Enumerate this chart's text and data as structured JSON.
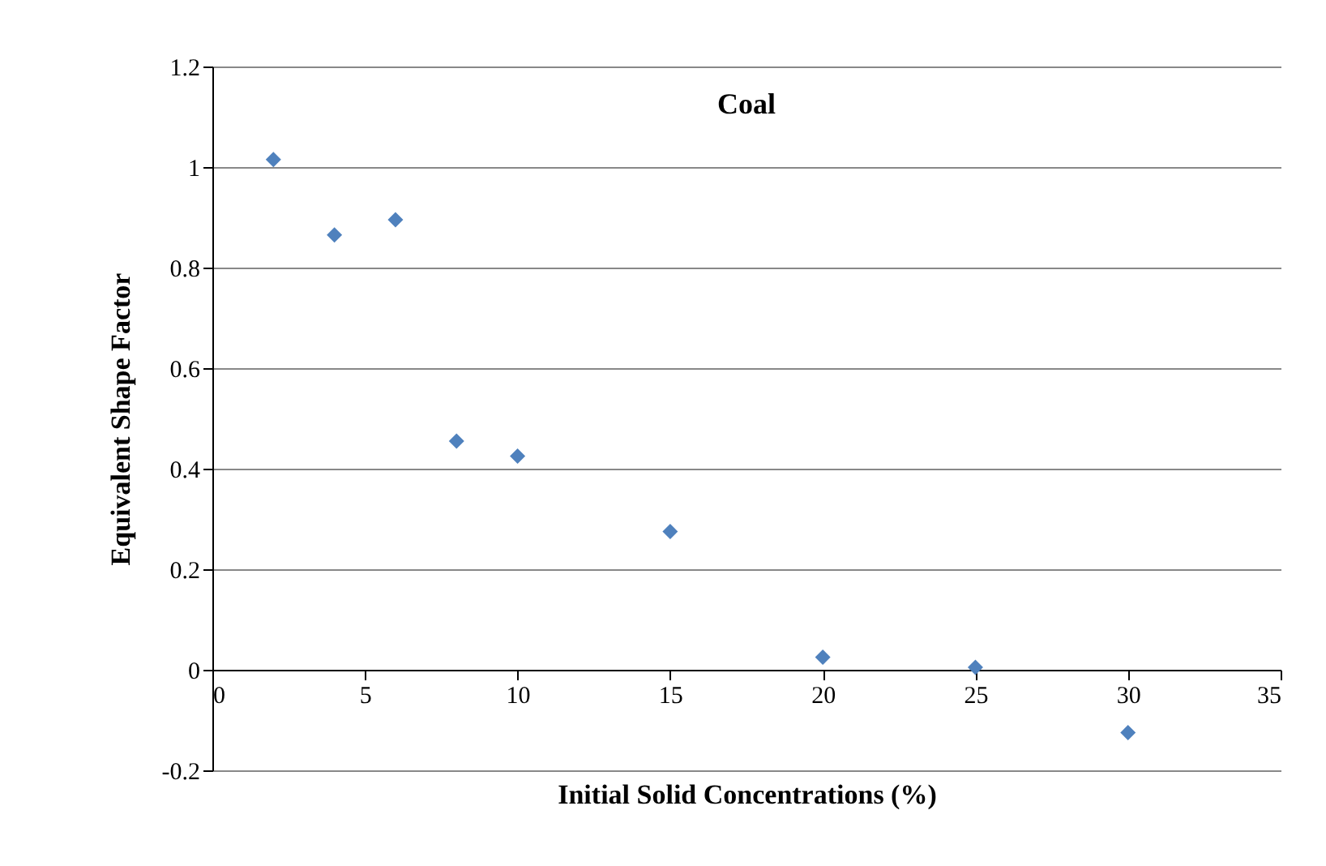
{
  "chart_data": {
    "type": "scatter",
    "title": "Coal",
    "xlabel": "Initial Solid Concentrations (%)",
    "ylabel": "Equivalent Shape Factor",
    "x": [
      2,
      4,
      6,
      8,
      10,
      15,
      20,
      25,
      30
    ],
    "series": [
      {
        "color": "#4f81bd",
        "values": [
          1.015,
          0.865,
          0.895,
          0.455,
          0.425,
          0.275,
          0.025,
          0.005,
          -0.125
        ]
      }
    ],
    "xlim": [
      0,
      35
    ],
    "xticks": [
      0,
      5,
      10,
      15,
      20,
      25,
      30,
      35
    ],
    "ylim": [
      -0.2,
      1.2
    ],
    "yticks": [
      -0.2,
      0,
      0.2,
      0.4,
      0.6,
      0.8,
      1,
      1.2
    ],
    "grid": "y",
    "marker": "diamond",
    "legend": false
  }
}
